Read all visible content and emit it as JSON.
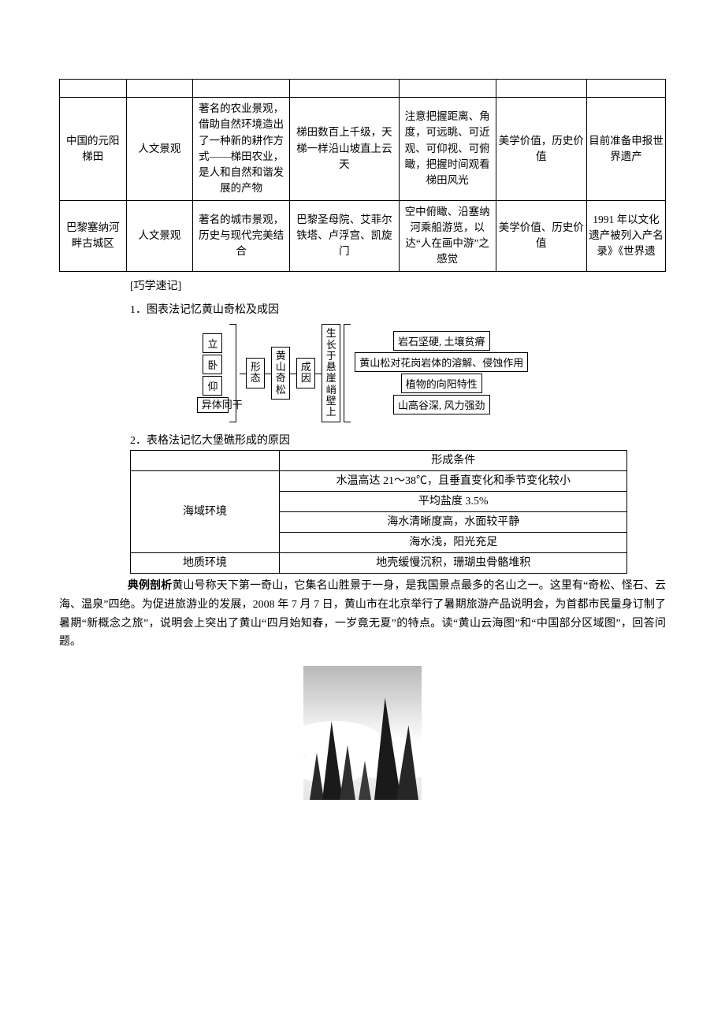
{
  "table_top": {
    "rows": [
      {
        "c0": "中国的元阳梯田",
        "c1": "人文景观",
        "c2": "著名的农业景观，借助自然环境造出了一种新的耕作方式——梯田农业，是人和自然和谐发展的产物",
        "c3": "梯田数百上千级，天梯一样沿山坡直上云天",
        "c4": "注意把握距离、角度，可远眺、可近观、可仰视、可俯瞰，把握时间观看梯田风光",
        "c5": "美学价值，历史价值",
        "c6": "目前准备申报世界遗产"
      },
      {
        "c0": "巴黎塞纳河畔古城区",
        "c1": "人文景观",
        "c2": "著名的城市景观，历史与现代完美结合",
        "c3": "巴黎圣母院、艾菲尔铁塔、卢浮宫、凯旋门",
        "c4": "空中俯瞰、沿塞纳河乘船游览，以达“人在画中游”之感觉",
        "c5": "美学价值、历史价值",
        "c6": "1991 年以文化遗产被列入产名录》《世界遗"
      }
    ]
  },
  "mnemonic_heading": "[巧学速记]",
  "item1_title": "1．图表法记忆黄山奇松及成因",
  "diagram": {
    "left_items": [
      "立",
      "卧",
      "仰",
      "异体同干"
    ],
    "left_mid": "形态",
    "center": "黄山奇松",
    "right_mid": "成因",
    "vcol": "生长于悬崖峭壁上",
    "right_items": [
      "岩石坚硬, 土壤贫瘠",
      "黄山松对花岗岩体的溶解、侵蚀作用",
      "植物的向阳特性",
      "山高谷深, 风力强劲"
    ]
  },
  "item2_title": "2．表格法记忆大堡礁形成的原因",
  "cond_table": {
    "header": "形成条件",
    "rows": [
      {
        "left": "海域环境",
        "right": "水温高达 21～38℃，且垂直变化和季节变化较小",
        "rowspan": 4
      },
      {
        "right": "平均盐度 3.5%"
      },
      {
        "right": "海水清晰度高，水面较平静"
      },
      {
        "right": "海水浅，阳光充足"
      },
      {
        "left": "地质环境",
        "right": "地壳缓慢沉积，珊瑚虫骨骼堆积",
        "rowspan": 1
      }
    ]
  },
  "example": {
    "lead_bold": "典例剖析",
    "para": "黄山号称天下第一奇山，它集名山胜景于一身，是我国景点最多的名山之一。这里有“奇松、怪石、云海、温泉”四绝。为促进旅游业的发展，2008 年 7 月 7 日，黄山市在北京举行了暑期旅游产品说明会，为首都市民量身订制了暑期“新概念之旅”，说明会上突出了黄山“四月始知春，一岁竟无夏”的特点。读“黄山云海图”和“中国部分区域图”，回答问题。"
  },
  "photo_alt": "黄山云海图"
}
